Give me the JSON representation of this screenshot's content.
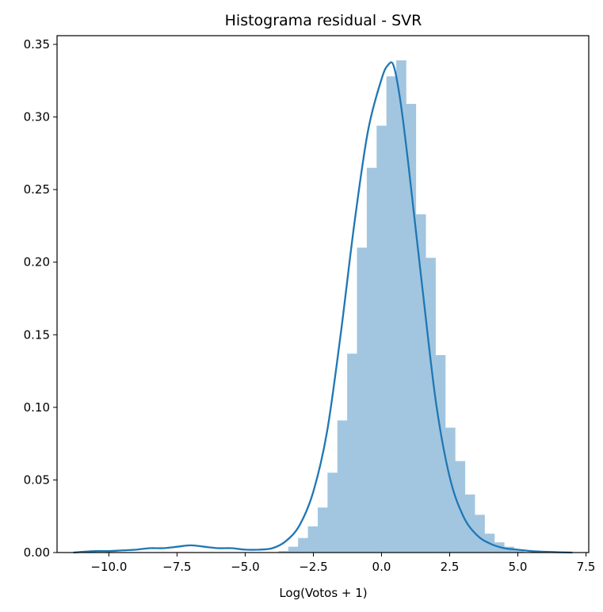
{
  "chart_data": {
    "type": "bar",
    "title": "Histograma residual - SVR",
    "xlabel": "Log(Votos + 1)",
    "ylabel": "",
    "xlim": [
      -11.9,
      7.6
    ],
    "ylim": [
      0,
      0.356
    ],
    "grid": false,
    "x_ticks": [
      {
        "value": -10.0,
        "label": "−10.0"
      },
      {
        "value": -7.5,
        "label": "−7.5"
      },
      {
        "value": -5.0,
        "label": "−5.0"
      },
      {
        "value": -2.5,
        "label": "−2.5"
      },
      {
        "value": 0.0,
        "label": "0.0"
      },
      {
        "value": 2.5,
        "label": "2.5"
      },
      {
        "value": 5.0,
        "label": "5.0"
      },
      {
        "value": 7.5,
        "label": "7.5"
      }
    ],
    "y_ticks": [
      {
        "value": 0.0,
        "label": "0.00"
      },
      {
        "value": 0.05,
        "label": "0.05"
      },
      {
        "value": 0.1,
        "label": "0.10"
      },
      {
        "value": 0.15,
        "label": "0.15"
      },
      {
        "value": 0.2,
        "label": "0.20"
      },
      {
        "value": 0.25,
        "label": "0.25"
      },
      {
        "value": 0.3,
        "label": "0.30"
      },
      {
        "value": 0.35,
        "label": "0.35"
      }
    ],
    "bar_color": "#a2c6e0",
    "kde_color": "#1f77b4",
    "bin_width": 0.36,
    "histogram": [
      {
        "x": -3.6,
        "density": 0.001
      },
      {
        "x": -3.24,
        "density": 0.004
      },
      {
        "x": -2.88,
        "density": 0.01
      },
      {
        "x": -2.52,
        "density": 0.018
      },
      {
        "x": -2.16,
        "density": 0.031
      },
      {
        "x": -1.8,
        "density": 0.055
      },
      {
        "x": -1.44,
        "density": 0.091
      },
      {
        "x": -1.08,
        "density": 0.137
      },
      {
        "x": -0.72,
        "density": 0.21
      },
      {
        "x": -0.36,
        "density": 0.265
      },
      {
        "x": 0.0,
        "density": 0.294
      },
      {
        "x": 0.36,
        "density": 0.328
      },
      {
        "x": 0.72,
        "density": 0.339
      },
      {
        "x": 1.08,
        "density": 0.309
      },
      {
        "x": 1.44,
        "density": 0.233
      },
      {
        "x": 1.8,
        "density": 0.203
      },
      {
        "x": 2.16,
        "density": 0.136
      },
      {
        "x": 2.52,
        "density": 0.086
      },
      {
        "x": 2.88,
        "density": 0.063
      },
      {
        "x": 3.24,
        "density": 0.04
      },
      {
        "x": 3.6,
        "density": 0.026
      },
      {
        "x": 3.96,
        "density": 0.013
      },
      {
        "x": 4.32,
        "density": 0.007
      },
      {
        "x": 4.68,
        "density": 0.004
      },
      {
        "x": 5.04,
        "density": 0.002
      }
    ],
    "kde": {
      "x": [
        -11.3,
        -10.5,
        -10.0,
        -9.5,
        -9.0,
        -8.5,
        -8.0,
        -7.5,
        -7.0,
        -6.5,
        -6.0,
        -5.5,
        -5.0,
        -4.5,
        -4.0,
        -3.5,
        -3.0,
        -2.5,
        -2.0,
        -1.5,
        -1.0,
        -0.5,
        0.0,
        0.25,
        0.45,
        0.7,
        1.0,
        1.5,
        2.0,
        2.5,
        3.0,
        3.5,
        4.0,
        4.5,
        5.0,
        5.5,
        6.0,
        6.5,
        7.0
      ],
      "y": [
        0.0,
        0.001,
        0.001,
        0.0015,
        0.002,
        0.003,
        0.003,
        0.004,
        0.005,
        0.004,
        0.003,
        0.003,
        0.002,
        0.002,
        0.003,
        0.008,
        0.019,
        0.042,
        0.083,
        0.15,
        0.226,
        0.29,
        0.326,
        0.336,
        0.335,
        0.31,
        0.265,
        0.182,
        0.103,
        0.052,
        0.025,
        0.012,
        0.006,
        0.003,
        0.002,
        0.001,
        0.0005,
        0.0002,
        0.0
      ]
    }
  }
}
